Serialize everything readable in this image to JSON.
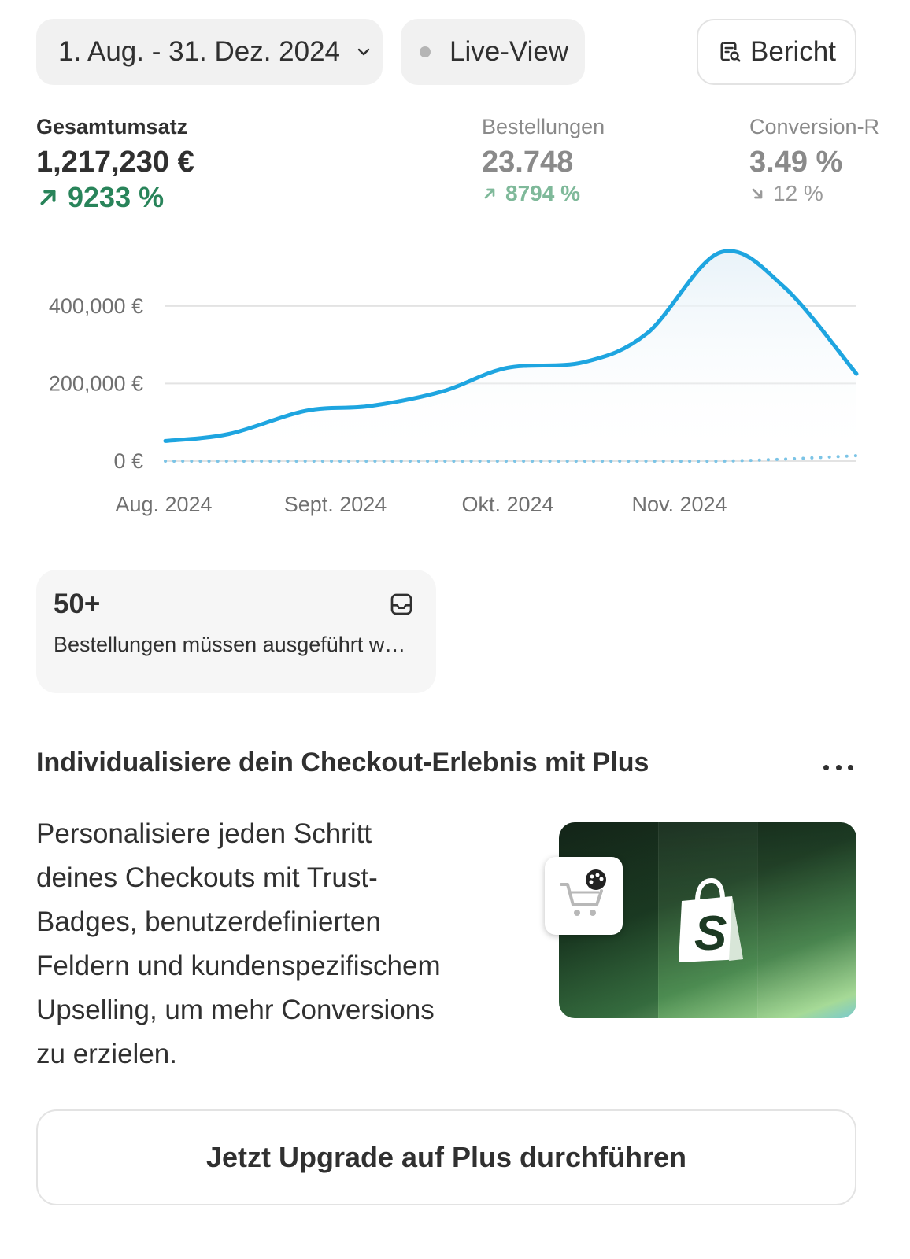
{
  "toolbar": {
    "date_range": "1. Aug. - 31. Dez. 2024",
    "live_view": "Live-View",
    "report": "Bericht"
  },
  "metrics": {
    "total_sales": {
      "label": "Gesamtumsatz",
      "value": "1,217,230 €",
      "delta": "9233 %",
      "trend": "up"
    },
    "orders": {
      "label": "Bestellungen",
      "value": "23.748",
      "delta": "8794 %",
      "trend": "up"
    },
    "conversion": {
      "label": "Conversion-R",
      "value": "3.49 %",
      "delta": "12 %",
      "trend": "down"
    }
  },
  "chart_data": {
    "type": "line",
    "x": [
      "2024-08-01",
      "2024-08-15",
      "2024-09-01",
      "2024-09-15",
      "2024-10-01",
      "2024-10-15",
      "2024-11-01",
      "2024-11-15",
      "2024-12-01",
      "2024-12-15",
      "2024-12-31"
    ],
    "x_tick_labels": [
      "Aug. 2024",
      "Sept. 2024",
      "Okt. 2024",
      "Nov. 2024"
    ],
    "y_tick_labels": [
      "0 €",
      "200,000 €",
      "400,000 €"
    ],
    "y_ticks": [
      0,
      200000,
      400000
    ],
    "ylim": [
      0,
      560000
    ],
    "series": [
      {
        "values": [
          52000,
          70000,
          130000,
          142000,
          180000,
          240000,
          255000,
          330000,
          538000,
          450000,
          225000
        ],
        "style": "solid",
        "color": "#1ea5e0"
      },
      {
        "values": [
          0,
          0,
          0,
          0,
          0,
          0,
          0,
          0,
          0,
          5000,
          14000
        ],
        "style": "dotted",
        "color": "#7cc4e6"
      }
    ],
    "grid": true,
    "legend": "none"
  },
  "todo": {
    "count": "50+",
    "text": "Bestellungen müssen ausgeführt werden"
  },
  "promo": {
    "title": "Individualisiere dein Checkout-Erlebnis mit Plus",
    "lines": [
      "Personalisiere jeden Schritt",
      "deines Checkouts mit Trust-",
      "Badges, benutzerdefinierten",
      "Feldern und kundenspezifischem",
      "Upselling, um mehr Conversions",
      "zu erzielen."
    ],
    "button": "Jetzt Upgrade auf Plus durchführen",
    "image_icons": [
      "shopify-bag-icon",
      "cart-palette-icon"
    ]
  }
}
